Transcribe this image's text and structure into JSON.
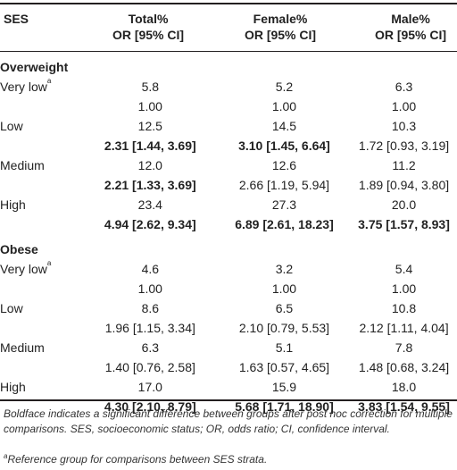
{
  "header": {
    "ses": "SES",
    "total_line1": "Total%",
    "total_line2": "OR [95% CI]",
    "female_line1": "Female%",
    "female_line2": "OR [95% CI]",
    "male_line1": "Male%",
    "male_line2": "OR [95% CI]"
  },
  "overweight": {
    "title": "Overweight",
    "rows": [
      {
        "label": "Very low",
        "sup": "a",
        "total": "5.8",
        "female": "5.2",
        "male": "6.3"
      },
      {
        "label": "",
        "total": "1.00",
        "female": "1.00",
        "male": "1.00"
      },
      {
        "label": "Low",
        "total": "12.5",
        "female": "14.5",
        "male": "10.3"
      },
      {
        "label": "",
        "total": "2.31 [1.44, 3.69]",
        "female": "3.10 [1.45, 6.64]",
        "male": "1.72 [0.93, 3.19]"
      },
      {
        "label": "Medium",
        "total": "12.0",
        "female": "12.6",
        "male": "11.2"
      },
      {
        "label": "",
        "total": "2.21 [1.33, 3.69]",
        "female": "2.66 [1.19, 5.94]",
        "male": "1.89 [0.94, 3.80]"
      },
      {
        "label": "High",
        "total": "23.4",
        "female": "27.3",
        "male": "20.0"
      },
      {
        "label": "",
        "total": "4.94 [2.62, 9.34]",
        "female": "6.89 [2.61, 18.23]",
        "male": "3.75 [1.57, 8.93]"
      }
    ]
  },
  "obese": {
    "title": "Obese",
    "rows": [
      {
        "label": "Very low",
        "sup": "a",
        "total": "4.6",
        "female": "3.2",
        "male": "5.4"
      },
      {
        "label": "",
        "total": "1.00",
        "female": "1.00",
        "male": "1.00"
      },
      {
        "label": "Low",
        "total": "8.6",
        "female": "6.5",
        "male": "10.8"
      },
      {
        "label": "",
        "total": "1.96 [1.15, 3.34]",
        "female": "2.10 [0.79, 5.53]",
        "male": "2.12 [1.11, 4.04]"
      },
      {
        "label": "Medium",
        "total": "6.3",
        "female": "5.1",
        "male": "7.8"
      },
      {
        "label": "",
        "total": "1.40 [0.76, 2.58]",
        "female": "1.63 [0.57, 4.65]",
        "male": "1.48 [0.68, 3.24]"
      },
      {
        "label": "High",
        "total": "17.0",
        "female": "15.9",
        "male": "18.0"
      },
      {
        "label": "",
        "total": "4.30 [2.10, 8.79]",
        "female": "5.68 [1.71, 18.90]",
        "male": "3.83 [1.54, 9.55]"
      }
    ]
  },
  "footnotes": {
    "note1": "Boldface indicates a significant difference between groups after post hoc correction for multiple comparisons. SES, socioeconomic status; OR, odds ratio; CI, confidence interval.",
    "note2_sup": "a",
    "note2": "Reference group for comparisons between SES strata."
  }
}
